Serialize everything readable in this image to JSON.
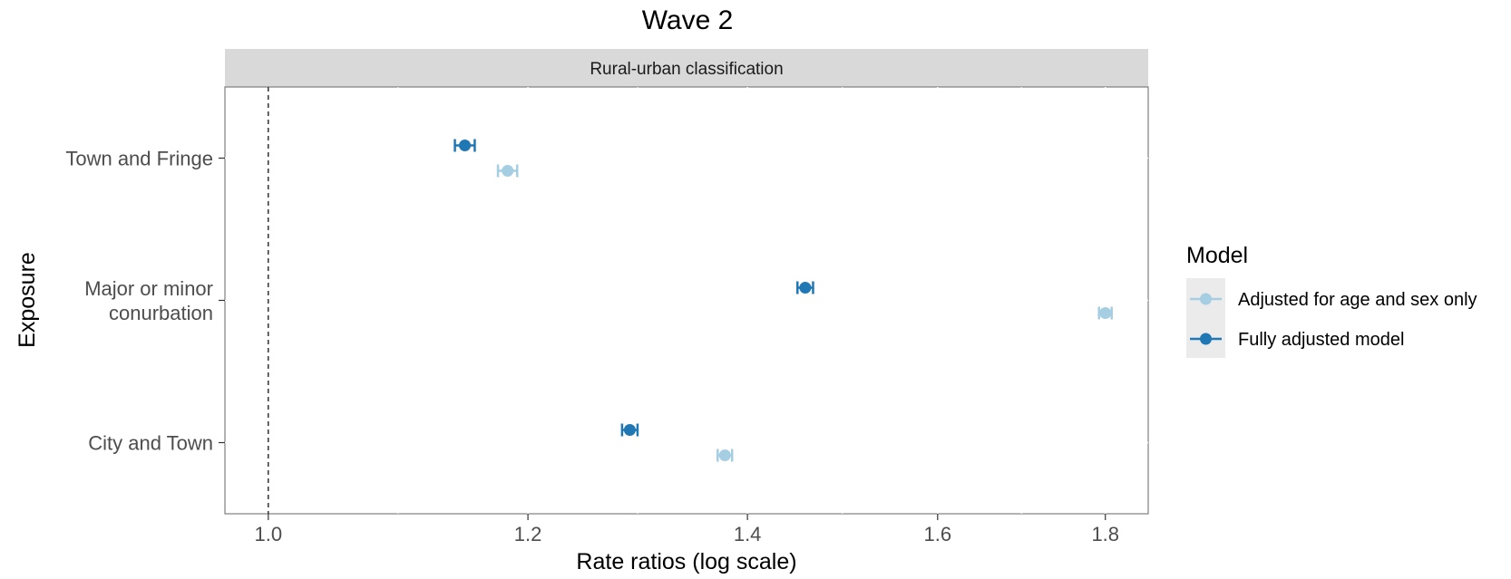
{
  "chart_data": {
    "type": "scatter",
    "title": "Wave 2",
    "facet_label": "Rural-urban classification",
    "xlabel": "Rate ratios (log scale)",
    "ylabel": "Exposure",
    "x_scale": "log",
    "xlim": [
      0.97,
      1.855
    ],
    "x_ticks": [
      1.0,
      1.2,
      1.4,
      1.6,
      1.8
    ],
    "x_tick_labels": [
      "1.0",
      "1.2",
      "1.4",
      "1.6",
      "1.8"
    ],
    "reference_line": 1.0,
    "categories": [
      [
        "Town and Fringe"
      ],
      [
        "Major or minor",
        "conurbation"
      ],
      [
        "City and Town"
      ]
    ],
    "legend": {
      "title": "Model",
      "position": "right"
    },
    "series": [
      {
        "name": "Adjusted for age and sex only",
        "color": "#a6cee3",
        "values": [
          1.183,
          1.8,
          1.378
        ],
        "lower": [
          1.175,
          1.792,
          1.371
        ],
        "upper": [
          1.191,
          1.808,
          1.385
        ]
      },
      {
        "name": "Fully adjusted model",
        "color": "#1f78b4",
        "values": [
          1.148,
          1.458,
          1.289
        ],
        "lower": [
          1.14,
          1.45,
          1.282
        ],
        "upper": [
          1.156,
          1.466,
          1.296
        ]
      }
    ]
  }
}
